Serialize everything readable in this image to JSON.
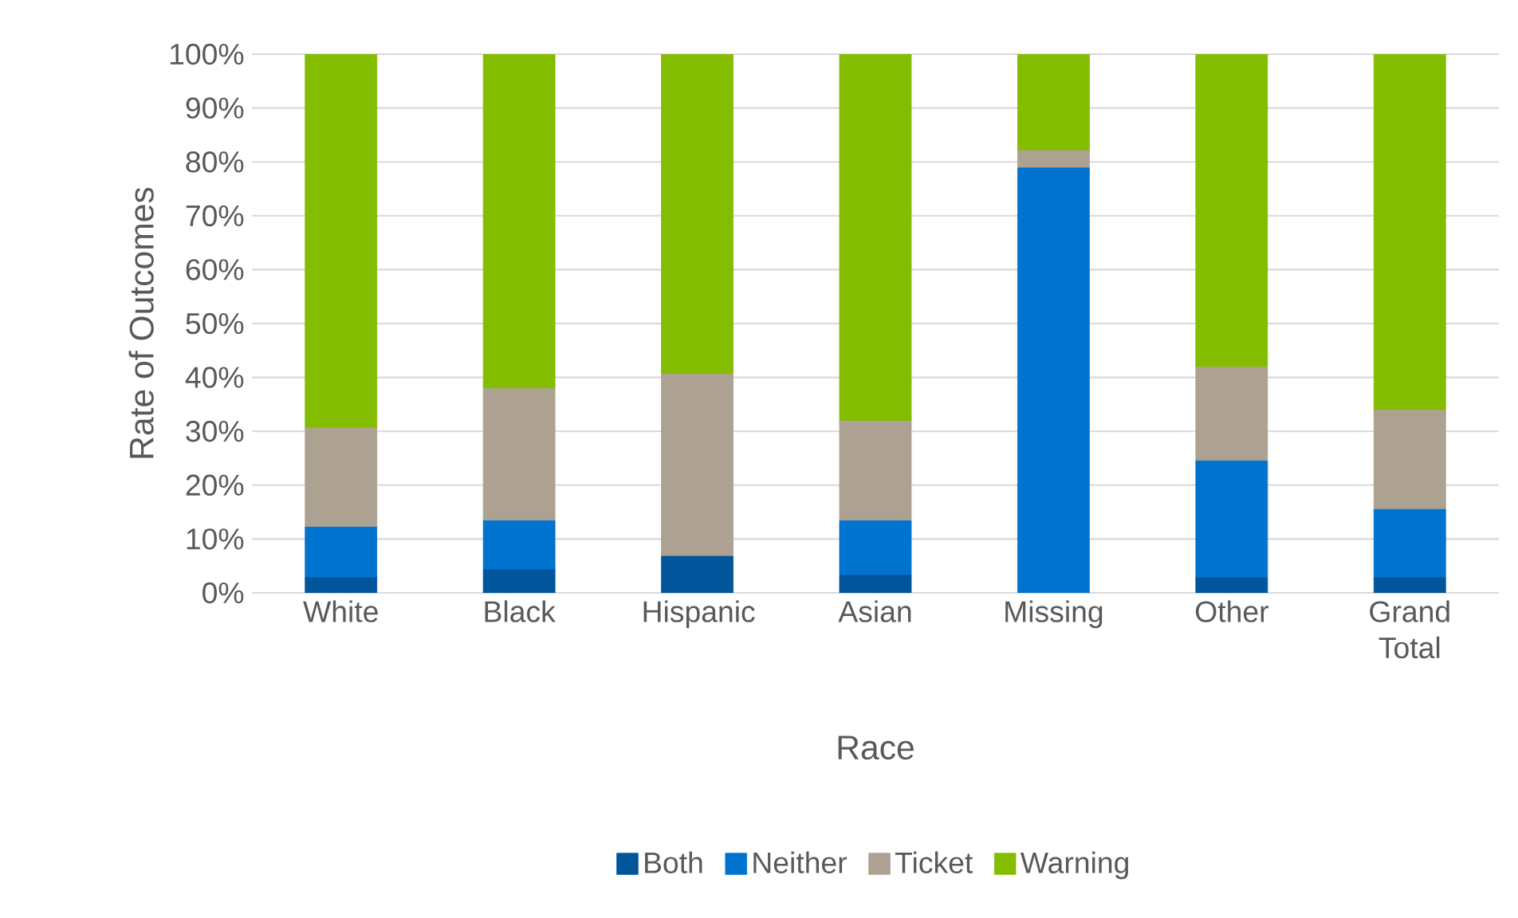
{
  "chart_data": {
    "type": "bar",
    "stacked": true,
    "xlabel": "Race",
    "ylabel": "Rate of Outcomes",
    "categories": [
      "White",
      "Black",
      "Hispanic",
      "Asian",
      "Missing",
      "Other",
      "Grand Total"
    ],
    "series": [
      {
        "name": "Both",
        "color": "#00559b",
        "values": [
          2.8,
          4.3,
          6.8,
          3.3,
          0,
          2.8,
          2.8
        ]
      },
      {
        "name": "Neither",
        "color": "#0073cf",
        "values": [
          9.4,
          9.1,
          0,
          10.1,
          78.9,
          21.7,
          12.7
        ]
      },
      {
        "name": "Ticket",
        "color": "#ada191",
        "values": [
          18.4,
          24.5,
          33.8,
          18.5,
          3.2,
          17.4,
          18.4
        ]
      },
      {
        "name": "Warning",
        "color": "#84bc00",
        "values": [
          69.4,
          62.1,
          59.4,
          68.1,
          17.9,
          58.1,
          66.1
        ]
      }
    ],
    "ylim": [
      0,
      100
    ],
    "yticks": [
      {
        "value": 0,
        "label": "0%"
      },
      {
        "value": 10,
        "label": "10%"
      },
      {
        "value": 20,
        "label": "20%"
      },
      {
        "value": 30,
        "label": "30%"
      },
      {
        "value": 40,
        "label": "40%"
      },
      {
        "value": 50,
        "label": "50%"
      },
      {
        "value": 60,
        "label": "60%"
      },
      {
        "value": 70,
        "label": "70%"
      },
      {
        "value": 80,
        "label": "80%"
      },
      {
        "value": 90,
        "label": "90%"
      },
      {
        "value": 100,
        "label": "100%"
      }
    ],
    "grid": "y",
    "legend": "bottom"
  }
}
